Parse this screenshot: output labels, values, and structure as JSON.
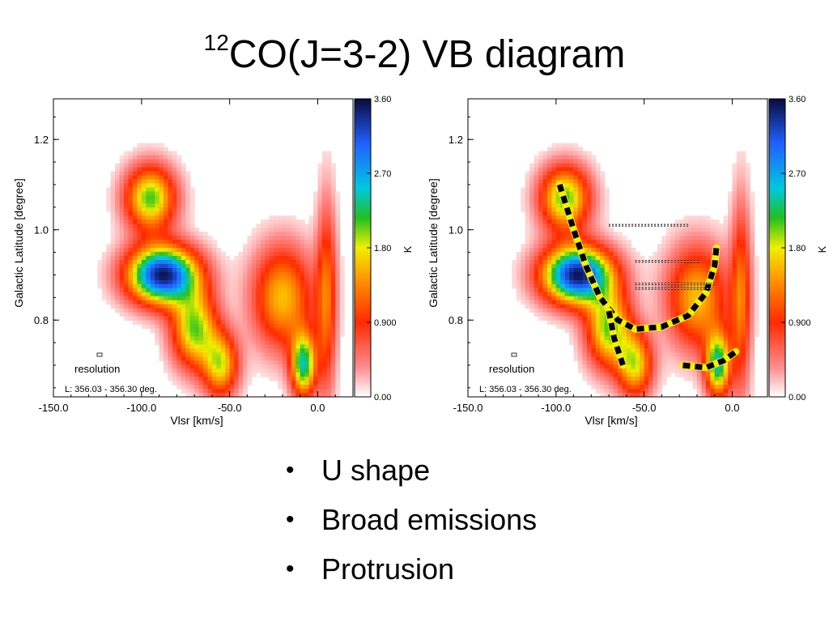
{
  "slide": {
    "title_sup": "12",
    "title_main": "CO(J=3-2)   VB diagram",
    "bullets": [
      "U shape",
      "Broad emissions",
      "Protrusion"
    ]
  },
  "colors": {
    "low": "#ffffff",
    "pink": "#ff8c8c",
    "red": "#ff2a00",
    "orange": "#ff9900",
    "yellow": "#f2ee00",
    "green": "#20c020",
    "cyan": "#00c8e0",
    "blue": "#2060ff",
    "dark": "#0a0a40"
  },
  "chart_data": [
    {
      "type": "heatmap",
      "panel": "left",
      "xlabel": "Vlsr [km/s]",
      "ylabel": "Galactic Latitude [degree]",
      "xlim": [
        -150,
        20
      ],
      "ylim": [
        0.63,
        1.29
      ],
      "xticks": [
        -150,
        -100,
        -50,
        0
      ],
      "xtick_labels": [
        "-150.0",
        "-100.0",
        "-50.0",
        "0.0"
      ],
      "yticks": [
        0.8,
        1.0,
        1.2
      ],
      "ytick_labels": [
        "0.8",
        "1.0",
        "1.2"
      ],
      "colorbar": {
        "label": "K",
        "range": [
          0,
          3.6
        ],
        "tick_labels": [
          "3.60",
          "2.70",
          "1.80",
          "0.900",
          "0.00"
        ],
        "tick_values": [
          3.6,
          2.7,
          1.8,
          0.9,
          0.0
        ]
      },
      "annotations": {
        "resolution": "resolution",
        "range": "L: 356.03 - 356.30 deg."
      },
      "emission_peaks": [
        {
          "v": -88,
          "b": 0.9,
          "peak": 3.5,
          "sv": 14,
          "sb": 0.045
        },
        {
          "v": -95,
          "b": 1.07,
          "peak": 2.1,
          "sv": 10,
          "sb": 0.05
        },
        {
          "v": -70,
          "b": 0.78,
          "peak": 2.0,
          "sv": 9,
          "sb": 0.06
        },
        {
          "v": -55,
          "b": 0.7,
          "peak": 1.7,
          "sv": 7,
          "sb": 0.05
        },
        {
          "v": -20,
          "b": 0.85,
          "peak": 1.6,
          "sv": 12,
          "sb": 0.08
        },
        {
          "v": -8,
          "b": 0.7,
          "peak": 2.3,
          "sv": 5,
          "sb": 0.05
        },
        {
          "v": 5,
          "b": 0.85,
          "peak": 1.2,
          "sv": 4,
          "sb": 0.15
        }
      ]
    },
    {
      "type": "heatmap",
      "panel": "right",
      "xlabel": "Vlsr [km/s]",
      "ylabel": "Galactic Latitude [degree]",
      "xlim": [
        -150,
        20
      ],
      "ylim": [
        0.63,
        1.29
      ],
      "xticks": [
        -150,
        -100,
        -50,
        0
      ],
      "xtick_labels": [
        "-150.0",
        "-100.0",
        "-50.0",
        "0.0"
      ],
      "yticks": [
        0.8,
        1.0,
        1.2
      ],
      "ytick_labels": [
        "0.8",
        "1.0",
        "1.2"
      ],
      "colorbar": {
        "label": "K",
        "range": [
          0,
          3.6
        ],
        "tick_labels": [
          "3.60",
          "2.70",
          "1.80",
          "0.900",
          "0.00"
        ],
        "tick_values": [
          3.6,
          2.7,
          1.8,
          0.9,
          0.0
        ]
      },
      "annotations": {
        "resolution": "resolution",
        "range": "L: 356.03 - 356.30 deg."
      },
      "emission_peaks": [
        {
          "v": -88,
          "b": 0.9,
          "peak": 3.5,
          "sv": 14,
          "sb": 0.045
        },
        {
          "v": -95,
          "b": 1.07,
          "peak": 2.1,
          "sv": 10,
          "sb": 0.05
        },
        {
          "v": -70,
          "b": 0.78,
          "peak": 2.0,
          "sv": 9,
          "sb": 0.06
        },
        {
          "v": -55,
          "b": 0.7,
          "peak": 1.7,
          "sv": 7,
          "sb": 0.05
        },
        {
          "v": -20,
          "b": 0.85,
          "peak": 1.6,
          "sv": 12,
          "sb": 0.08
        },
        {
          "v": -8,
          "b": 0.7,
          "peak": 2.3,
          "sv": 5,
          "sb": 0.05
        },
        {
          "v": 5,
          "b": 0.85,
          "peak": 1.2,
          "sv": 4,
          "sb": 0.15
        }
      ],
      "overlays": {
        "u_shape_path": [
          [
            -98,
            1.1
          ],
          [
            -90,
            1.0
          ],
          [
            -83,
            0.92
          ],
          [
            -75,
            0.85
          ],
          [
            -65,
            0.8
          ],
          [
            -55,
            0.78
          ],
          [
            -40,
            0.785
          ],
          [
            -25,
            0.81
          ],
          [
            -15,
            0.86
          ],
          [
            -10,
            0.92
          ],
          [
            -9,
            0.96
          ]
        ],
        "u_shape_branch": [
          [
            -70,
            0.82
          ],
          [
            -67,
            0.76
          ],
          [
            -62,
            0.7
          ]
        ],
        "protrusion_path": [
          [
            -28,
            0.7
          ],
          [
            -15,
            0.695
          ],
          [
            -5,
            0.71
          ],
          [
            2,
            0.73
          ]
        ],
        "dotted_lines": [
          {
            "b": 1.01,
            "v_from": -70,
            "v_to": -25
          },
          {
            "b": 0.93,
            "v_from": -55,
            "v_to": -18
          },
          {
            "b": 0.88,
            "v_from": -55,
            "v_to": -10
          },
          {
            "b": 0.87,
            "v_from": -55,
            "v_to": -12
          }
        ]
      }
    }
  ]
}
